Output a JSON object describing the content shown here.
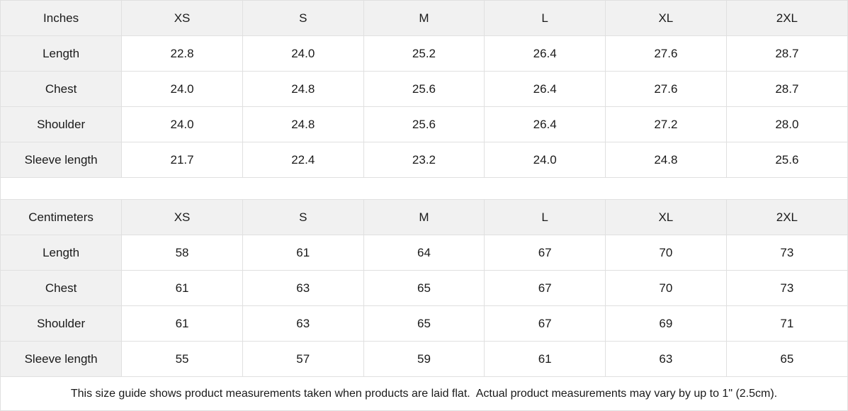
{
  "chart_data": [
    {
      "type": "table",
      "title": "Inches",
      "columns": [
        "Inches",
        "XS",
        "S",
        "M",
        "L",
        "XL",
        "2XL"
      ],
      "rows": [
        [
          "Length",
          "22.8",
          "24.0",
          "25.2",
          "26.4",
          "27.6",
          "28.7"
        ],
        [
          "Chest",
          "24.0",
          "24.8",
          "25.6",
          "26.4",
          "27.6",
          "28.7"
        ],
        [
          "Shoulder",
          "24.0",
          "24.8",
          "25.6",
          "26.4",
          "27.2",
          "28.0"
        ],
        [
          "Sleeve length",
          "21.7",
          "22.4",
          "23.2",
          "24.0",
          "24.8",
          "25.6"
        ]
      ]
    },
    {
      "type": "table",
      "title": "Centimeters",
      "columns": [
        "Centimeters",
        "XS",
        "S",
        "M",
        "L",
        "XL",
        "2XL"
      ],
      "rows": [
        [
          "Length",
          "58",
          "61",
          "64",
          "67",
          "70",
          "73"
        ],
        [
          "Chest",
          "61",
          "63",
          "65",
          "67",
          "70",
          "73"
        ],
        [
          "Shoulder",
          "61",
          "63",
          "65",
          "67",
          "69",
          "71"
        ],
        [
          "Sleeve length",
          "55",
          "57",
          "59",
          "61",
          "63",
          "65"
        ]
      ]
    }
  ],
  "footer": {
    "note": "This size guide shows product measurements taken when products are laid flat.  Actual product measurements may vary by up to 1\" (2.5cm)."
  },
  "colors": {
    "header_bg": "#f1f1f1",
    "border": "#e0e0e0",
    "text": "#1a1a1a"
  }
}
